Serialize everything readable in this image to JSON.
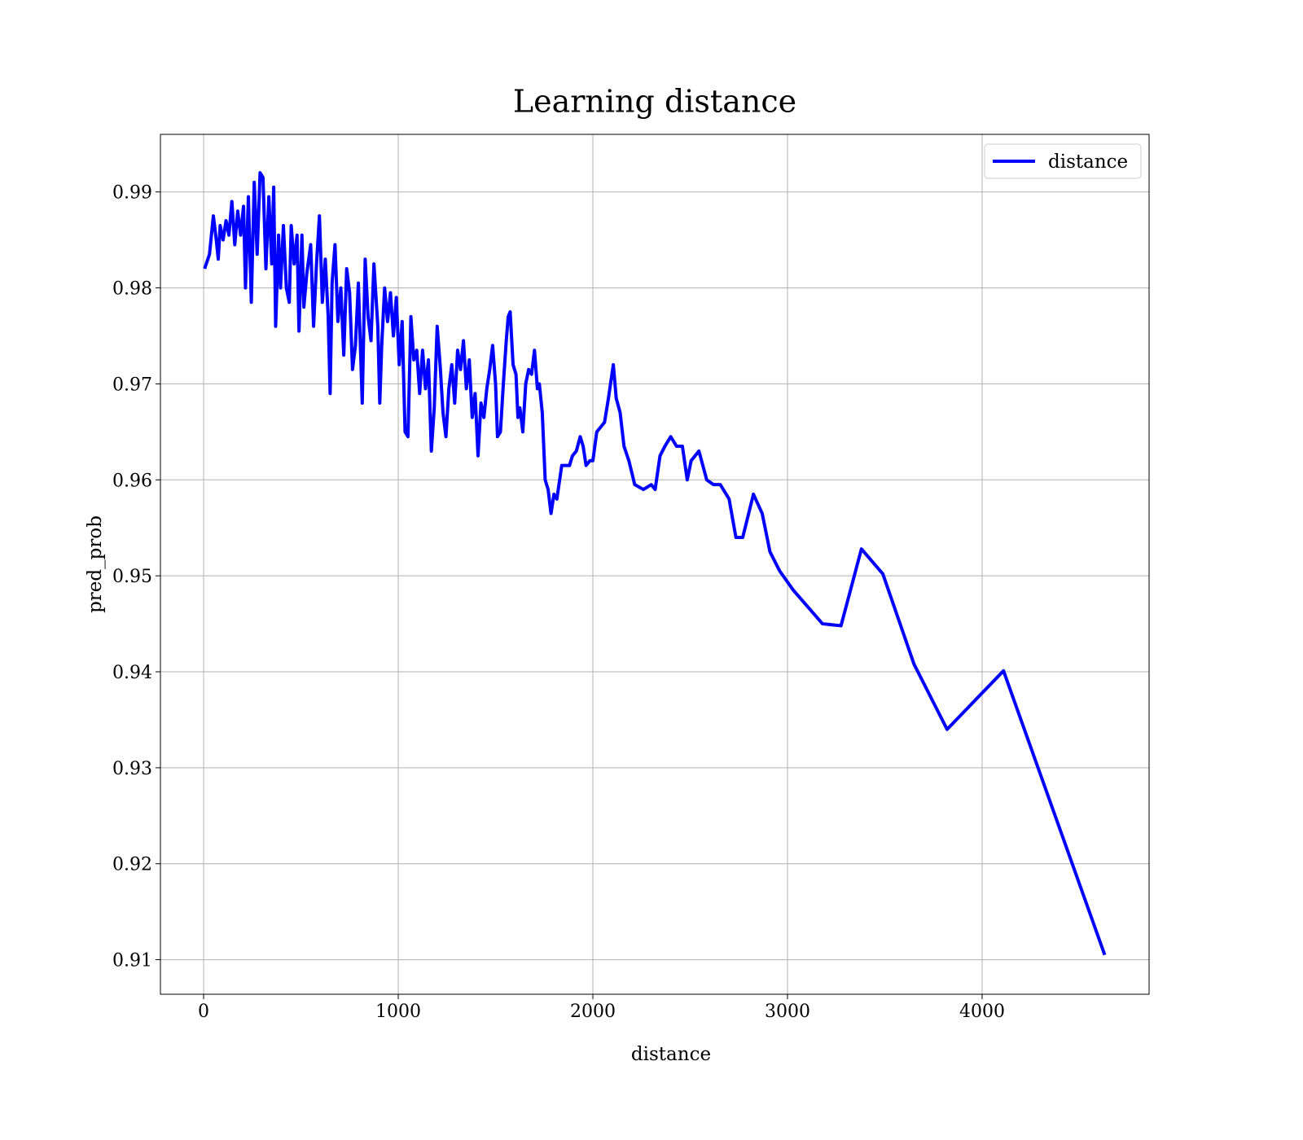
{
  "chart_data": {
    "type": "line",
    "title": "Learning distance",
    "xlabel": "distance",
    "ylabel": "pred_prob",
    "xlim": [
      -222,
      4858
    ],
    "ylim": [
      0.9064,
      0.996
    ],
    "xticks": [
      0,
      1000,
      2000,
      3000,
      4000
    ],
    "yticks": [
      0.91,
      0.92,
      0.93,
      0.94,
      0.95,
      0.96,
      0.97,
      0.98,
      0.99
    ],
    "grid": true,
    "legend": "upper right",
    "x": [
      5,
      30,
      50,
      65,
      75,
      85,
      100,
      115,
      130,
      145,
      160,
      175,
      190,
      205,
      215,
      230,
      245,
      260,
      275,
      290,
      305,
      320,
      335,
      350,
      360,
      370,
      385,
      395,
      410,
      425,
      440,
      450,
      465,
      480,
      490,
      505,
      515,
      530,
      550,
      565,
      580,
      595,
      610,
      625,
      640,
      650,
      660,
      675,
      690,
      705,
      720,
      735,
      750,
      765,
      780,
      795,
      815,
      830,
      845,
      860,
      875,
      895,
      905,
      915,
      930,
      945,
      960,
      975,
      990,
      1005,
      1020,
      1035,
      1050,
      1065,
      1080,
      1095,
      1110,
      1125,
      1140,
      1155,
      1170,
      1185,
      1200,
      1215,
      1230,
      1245,
      1260,
      1275,
      1290,
      1305,
      1320,
      1335,
      1350,
      1365,
      1380,
      1395,
      1410,
      1425,
      1440,
      1455,
      1470,
      1485,
      1500,
      1510,
      1525,
      1540,
      1555,
      1565,
      1575,
      1590,
      1605,
      1615,
      1625,
      1640,
      1655,
      1670,
      1685,
      1700,
      1715,
      1725,
      1740,
      1755,
      1770,
      1785,
      1800,
      1815,
      1840,
      1865,
      1880,
      1895,
      1915,
      1935,
      1950,
      1965,
      1985,
      2000,
      2020,
      2040,
      2060,
      2080,
      2105,
      2120,
      2140,
      2160,
      2185,
      2215,
      2260,
      2300,
      2320,
      2345,
      2370,
      2400,
      2430,
      2460,
      2485,
      2505,
      2545,
      2585,
      2620,
      2655,
      2700,
      2735,
      2770,
      2825,
      2870,
      2910,
      2960,
      3030,
      3180,
      3275,
      3380,
      3490,
      3650,
      3820,
      4110,
      4630
    ],
    "series": [
      {
        "name": "distance",
        "color": "#0000ff",
        "values": [
          0.982,
          0.9835,
          0.9875,
          0.985,
          0.983,
          0.9865,
          0.985,
          0.987,
          0.9855,
          0.989,
          0.9845,
          0.988,
          0.9855,
          0.9885,
          0.98,
          0.9895,
          0.9785,
          0.991,
          0.9835,
          0.992,
          0.9915,
          0.982,
          0.9895,
          0.9825,
          0.9905,
          0.976,
          0.9855,
          0.98,
          0.9865,
          0.98,
          0.9785,
          0.9865,
          0.9825,
          0.9855,
          0.9755,
          0.9855,
          0.978,
          0.9815,
          0.9845,
          0.976,
          0.9825,
          0.9875,
          0.9785,
          0.983,
          0.977,
          0.969,
          0.9805,
          0.9845,
          0.9765,
          0.98,
          0.973,
          0.982,
          0.9795,
          0.9715,
          0.974,
          0.9805,
          0.968,
          0.983,
          0.977,
          0.9745,
          0.9825,
          0.976,
          0.968,
          0.974,
          0.98,
          0.9765,
          0.9795,
          0.975,
          0.979,
          0.972,
          0.9765,
          0.965,
          0.9645,
          0.977,
          0.9725,
          0.9735,
          0.969,
          0.9735,
          0.9695,
          0.9725,
          0.963,
          0.9675,
          0.976,
          0.972,
          0.967,
          0.9645,
          0.9695,
          0.972,
          0.968,
          0.9735,
          0.9715,
          0.9745,
          0.9695,
          0.9725,
          0.9665,
          0.969,
          0.9625,
          0.968,
          0.9665,
          0.9695,
          0.9715,
          0.974,
          0.97,
          0.9645,
          0.965,
          0.97,
          0.9745,
          0.977,
          0.9775,
          0.972,
          0.971,
          0.9665,
          0.9675,
          0.965,
          0.97,
          0.9715,
          0.971,
          0.9735,
          0.9695,
          0.97,
          0.967,
          0.96,
          0.959,
          0.9565,
          0.9585,
          0.958,
          0.9615,
          0.9615,
          0.9615,
          0.9625,
          0.963,
          0.9645,
          0.9635,
          0.9615,
          0.962,
          0.962,
          0.965,
          0.9655,
          0.966,
          0.9685,
          0.972,
          0.9685,
          0.967,
          0.9635,
          0.962,
          0.9595,
          0.959,
          0.9595,
          0.959,
          0.9625,
          0.9635,
          0.9645,
          0.9635,
          0.9635,
          0.96,
          0.962,
          0.963,
          0.96,
          0.9595,
          0.9595,
          0.958,
          0.954,
          0.954,
          0.9585,
          0.9565,
          0.9525,
          0.9505,
          0.9485,
          0.945,
          0.9448,
          0.9528,
          0.9502,
          0.9408,
          0.934,
          0.9401,
          0.9105
        ]
      }
    ]
  }
}
